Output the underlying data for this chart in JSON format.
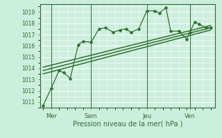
{
  "xlabel": "Pression niveau de la mer( hPa )",
  "bg_color": "#cceedd",
  "grid_color": "#ffffff",
  "line_color": "#2d6e2d",
  "tick_color": "#2d6e2d",
  "ylim": [
    1010.5,
    1019.7
  ],
  "xlim": [
    -0.2,
    10.8
  ],
  "yticks": [
    1011,
    1012,
    1013,
    1014,
    1015,
    1016,
    1017,
    1018,
    1019
  ],
  "day_labels": [
    "Mer",
    "Sam",
    "Jeu",
    "Ven"
  ],
  "day_positions": [
    0.5,
    3.0,
    6.5,
    9.2
  ],
  "vline_positions": [
    0.5,
    3.0,
    6.5,
    9.2
  ],
  "series": [
    {
      "x": [
        0.0,
        0.5,
        1.0,
        1.3,
        1.7,
        2.2,
        2.5,
        3.0,
        3.5,
        3.9,
        4.4,
        4.8,
        5.2,
        5.5,
        6.0,
        6.5,
        7.0,
        7.3,
        7.7,
        8.0,
        8.5,
        9.0,
        9.2,
        9.5,
        9.8,
        10.2,
        10.5
      ],
      "y": [
        1010.7,
        1012.2,
        1013.8,
        1013.6,
        1013.1,
        1016.1,
        1016.4,
        1016.3,
        1017.5,
        1017.6,
        1017.2,
        1017.4,
        1017.5,
        1017.2,
        1017.5,
        1019.1,
        1019.1,
        1018.9,
        1019.4,
        1017.3,
        1017.3,
        1016.6,
        1017.2,
        1018.1,
        1017.9,
        1017.6,
        1017.6
      ],
      "marker": "D",
      "markersize": 2.5,
      "linewidth": 0.9
    },
    {
      "x": [
        0.0,
        10.5
      ],
      "y": [
        1013.5,
        1017.4
      ],
      "marker": null,
      "linewidth": 1.1
    },
    {
      "x": [
        0.0,
        10.5
      ],
      "y": [
        1013.8,
        1017.6
      ],
      "marker": null,
      "linewidth": 1.1
    },
    {
      "x": [
        0.0,
        10.5
      ],
      "y": [
        1014.1,
        1017.8
      ],
      "marker": null,
      "linewidth": 1.1
    }
  ]
}
